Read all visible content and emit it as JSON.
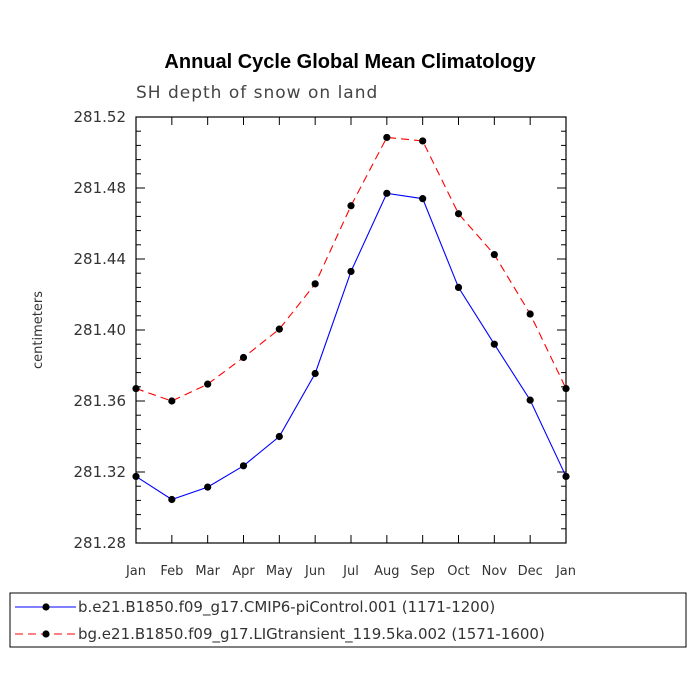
{
  "chart_data": {
    "type": "line",
    "title": "Annual Cycle Global Mean Climatology",
    "subtitle": "SH depth of snow on land",
    "xlabel": "",
    "ylabel": "centimeters",
    "categories": [
      "Jan",
      "Feb",
      "Mar",
      "Apr",
      "May",
      "Jun",
      "Jul",
      "Aug",
      "Sep",
      "Oct",
      "Nov",
      "Dec",
      "Jan"
    ],
    "ylim": [
      281.28,
      281.52
    ],
    "yticks": [
      "281.28",
      "281.32",
      "281.36",
      "281.40",
      "281.44",
      "281.48",
      "281.52"
    ],
    "series": [
      {
        "name": "b.e21.B1850.f09_g17.CMIP6-piControl.001 (1171-1200)",
        "color": "#0000ff",
        "dash": "solid",
        "values": [
          281.3175,
          281.3045,
          281.3115,
          281.3235,
          281.34,
          281.3755,
          281.433,
          281.477,
          281.474,
          281.424,
          281.392,
          281.3605,
          281.3175
        ]
      },
      {
        "name": "bg.e21.B1850.f09_g17.LIGtransient_119.5ka.002 (1571-1600)",
        "color": "#ff0000",
        "dash": "dashed",
        "values": [
          281.367,
          281.36,
          281.3695,
          281.3845,
          281.4005,
          281.426,
          281.47,
          281.5085,
          281.5065,
          281.4655,
          281.4425,
          281.409,
          281.367
        ]
      }
    ]
  }
}
